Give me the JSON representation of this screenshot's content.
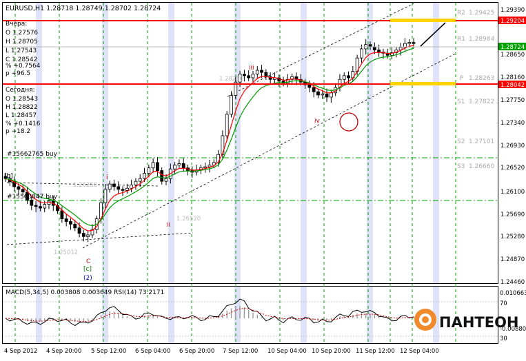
{
  "symbol_header": "EURUSD,H1  1.28718 1.28749 1.28702 1.28724",
  "yesterday": {
    "title": "Вчера:",
    "lines": [
      "O 1.27576",
      "H 1.28705",
      "L 1.27543",
      "C 1.28542",
      "% +0.7564",
      "p +96.5"
    ]
  },
  "today": {
    "title": "Сегодня:",
    "lines": [
      "O 1.28543",
      "H 1.28822",
      "L 1.28457",
      "% +0.1416",
      "p +18.2"
    ]
  },
  "order_labels": [
    "#15662765 buy",
    "#15563847 buy"
  ],
  "level_tags": [
    "1.28250",
    "1.26520",
    "1.26250",
    "1.25012"
  ],
  "wave_labels": [
    "iii",
    "iv",
    "i",
    "ii",
    "C",
    "[c]",
    "(2)",
    "[b]"
  ],
  "pivot_labels": [
    {
      "name": "R2",
      "value": "1.29425"
    },
    {
      "name": "R1",
      "value": "1.28984"
    },
    {
      "name": "P",
      "value": "1.28263"
    },
    {
      "name": "S1",
      "value": "1.27822"
    },
    {
      "name": "S2",
      "value": "1.27101"
    },
    {
      "name": "S3",
      "value": "1.26660"
    }
  ],
  "price_axis": [
    "1.29390",
    "1.28650",
    "1.28160",
    "1.27750",
    "1.27340",
    "1.26930",
    "1.26520",
    "1.26100",
    "1.25690",
    "1.25280",
    "1.24870",
    "1.24460"
  ],
  "price_boxes": {
    "resistance": {
      "text": "1.29204",
      "color": "#ff0000"
    },
    "current": {
      "text": "1.28724",
      "color": "#00a000"
    },
    "support": {
      "text": "1.28042",
      "color": "#ff0000"
    }
  },
  "time_axis": [
    "4 Sep 2012",
    "4 Sep 20:00",
    "5 Sep 12:00",
    "6 Sep 04:00",
    "6 Sep 20:00",
    "7 Sep 12:00",
    "10 Sep 04:00",
    "10 Sep 20:00",
    "11 Sep 12:00",
    "12 Sep 04:00"
  ],
  "indicator_header": "MACD(5,34,5) 0.003808 0.003649  RSI(14) 73.2171",
  "indicator_axis": [
    "0.010663",
    "70",
    "30",
    "-0.00880"
  ],
  "logo_text": "ПАНТЕОН",
  "colors": {
    "resistance": "#ff0000",
    "grid_green": "#00a000",
    "session_band": "#dfe2f8",
    "ma_fast": "#ff0000",
    "ma_slow": "#009900",
    "rsi": "#000000",
    "signal": "#cc0000",
    "target_highlight": "#ffd200"
  },
  "chart_data": {
    "type": "candlestick",
    "symbol": "EURUSD",
    "timeframe": "H1",
    "ylim": [
      1.2425,
      1.2948
    ],
    "resistance_level": 1.29204,
    "support_level": 1.28042,
    "current_price": 1.28724,
    "closes": [
      1.262,
      1.2614,
      1.2605,
      1.26,
      1.2595,
      1.258,
      1.257,
      1.2568,
      1.2565,
      1.2572,
      1.2578,
      1.257,
      1.256,
      1.2545,
      1.254,
      1.2535,
      1.2528,
      1.2518,
      1.2512,
      1.2515,
      1.2525,
      1.2545,
      1.2575,
      1.26,
      1.261,
      1.2605,
      1.26,
      1.2598,
      1.2602,
      1.2608,
      1.2615,
      1.262,
      1.263,
      1.264,
      1.265,
      1.2635,
      1.2615,
      1.262,
      1.2638,
      1.2645,
      1.2648,
      1.264,
      1.2635,
      1.2632,
      1.2636,
      1.264,
      1.2642,
      1.2645,
      1.265,
      1.2665,
      1.27,
      1.274,
      1.2775,
      1.28,
      1.2815,
      1.2812,
      1.2808,
      1.2815,
      1.2822,
      1.2818,
      1.281,
      1.2805,
      1.2808,
      1.2802,
      1.2798,
      1.2805,
      1.281,
      1.2805,
      1.28,
      1.2795,
      1.279,
      1.2782,
      1.2776,
      1.2778,
      1.2772,
      1.278,
      1.279,
      1.2805,
      1.2812,
      1.2808,
      1.282,
      1.2845,
      1.2862,
      1.287,
      1.2866,
      1.286,
      1.2856,
      1.2854,
      1.285,
      1.2855,
      1.286,
      1.2865,
      1.2872,
      1.2874,
      1.2872
    ],
    "projection": {
      "from": "12 Sep 04:00",
      "to_price": 1.292
    },
    "indicators": {
      "macd": {
        "fast": 5,
        "slow": 34,
        "signal": 5,
        "main": 0.003808,
        "signal_value": 0.003649
      },
      "rsi": {
        "period": 14,
        "value": 73.2171,
        "levels": [
          30,
          70
        ]
      }
    }
  }
}
